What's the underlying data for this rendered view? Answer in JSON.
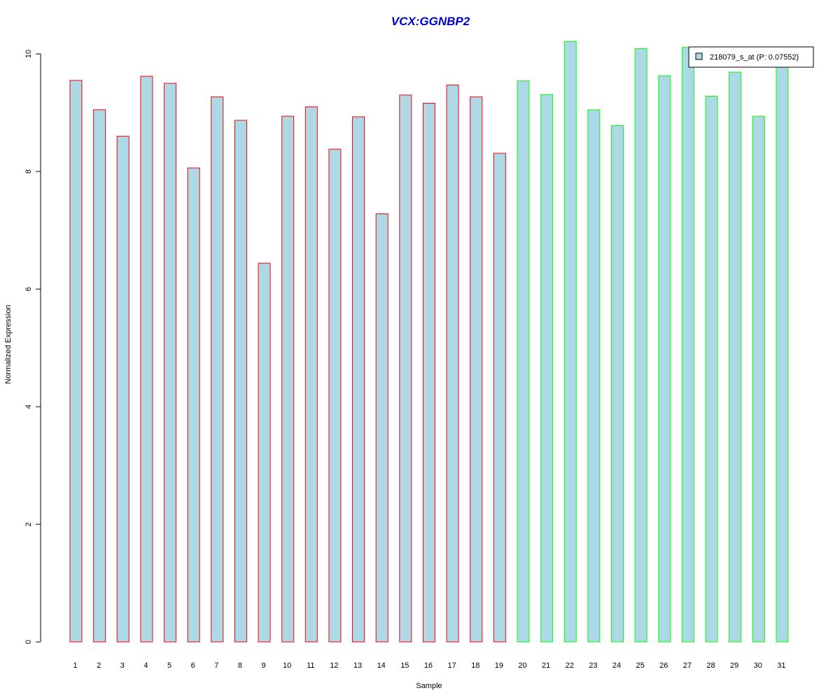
{
  "chart_data": {
    "type": "bar",
    "title": "VCX:GGNBP2",
    "xlabel": "Sample",
    "ylabel": "Normalized Expression",
    "ylim": [
      0,
      10
    ],
    "yticks": [
      "0",
      "2",
      "4",
      "6",
      "8",
      "10"
    ],
    "categories": [
      "1",
      "2",
      "3",
      "4",
      "5",
      "6",
      "7",
      "8",
      "9",
      "10",
      "11",
      "12",
      "13",
      "14",
      "15",
      "16",
      "17",
      "18",
      "19",
      "20",
      "21",
      "22",
      "23",
      "24",
      "25",
      "26",
      "27",
      "28",
      "29",
      "30",
      "31"
    ],
    "series": [
      {
        "name": "218079_s_at (P: 0.07552)",
        "values": [
          9.55,
          9.05,
          8.6,
          9.62,
          9.5,
          8.06,
          9.27,
          8.87,
          6.44,
          8.94,
          9.1,
          8.38,
          8.93,
          7.28,
          9.3,
          9.16,
          9.47,
          9.27,
          8.31,
          9.54,
          9.31,
          10.21,
          9.05,
          8.78,
          10.09,
          9.63,
          10.11,
          9.28,
          9.69,
          8.94,
          9.82
        ]
      }
    ],
    "group_assignment": [
      "red",
      "red",
      "red",
      "red",
      "red",
      "red",
      "red",
      "red",
      "red",
      "red",
      "red",
      "red",
      "red",
      "red",
      "red",
      "red",
      "red",
      "red",
      "red",
      "green",
      "green",
      "green",
      "green",
      "green",
      "green",
      "green",
      "green",
      "green",
      "green",
      "green",
      "green"
    ],
    "colors": {
      "bar_fill": "#ADD8E6",
      "border_group_1": "#FF0000",
      "border_group_2": "#00FF00",
      "title": "#0000CD"
    },
    "legend_position": "top-right",
    "grid": false
  }
}
